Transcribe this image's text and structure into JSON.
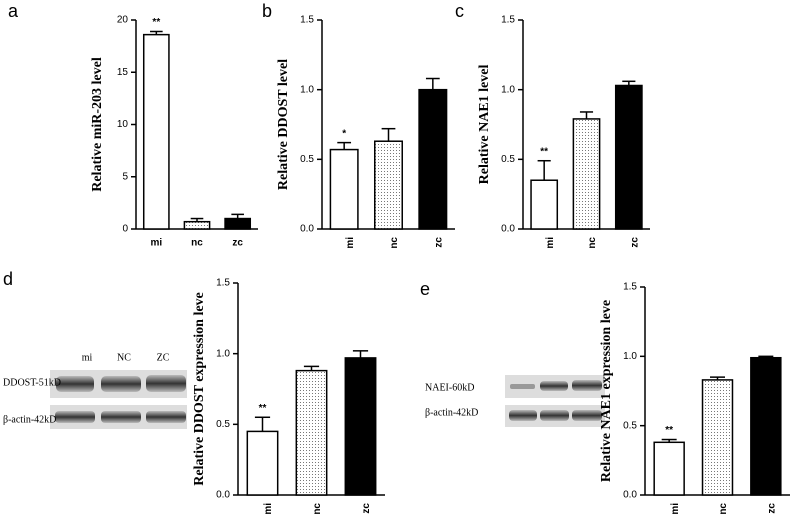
{
  "chart_data": [
    {
      "type": "bar",
      "panel": "a",
      "ylabel": "Relative miR-203 level",
      "categories": [
        "mi",
        "nc",
        "zc"
      ],
      "values": [
        18.6,
        0.7,
        1.0
      ],
      "errors": [
        0.3,
        0.3,
        0.4
      ],
      "significance": [
        "**",
        null,
        null
      ],
      "fills": [
        "white",
        "dotted",
        "black"
      ],
      "ylim": [
        0,
        20
      ],
      "yticks": [
        0,
        5,
        10,
        15,
        20
      ],
      "x_label_rotation": 0
    },
    {
      "type": "bar",
      "panel": "b",
      "ylabel": "Relative DDOST level",
      "categories": [
        "mi",
        "nc",
        "zc"
      ],
      "values": [
        0.57,
        0.63,
        1.0
      ],
      "errors": [
        0.05,
        0.09,
        0.08
      ],
      "significance": [
        "*",
        null,
        null
      ],
      "fills": [
        "white",
        "dotted",
        "black"
      ],
      "ylim": [
        0,
        1.5
      ],
      "yticks": [
        {
          "value": 0,
          "label": "0.0"
        },
        {
          "value": 0.5,
          "label": "0.5"
        },
        {
          "value": 1,
          "label": "1.0"
        },
        {
          "value": 1.5,
          "label": "1.5"
        }
      ],
      "x_label_rotation": 90
    },
    {
      "type": "bar",
      "panel": "c",
      "ylabel": "Relative NAE1 level",
      "categories": [
        "mi",
        "nc",
        "zc"
      ],
      "values": [
        0.35,
        0.79,
        1.03
      ],
      "errors": [
        0.14,
        0.05,
        0.03
      ],
      "significance": [
        "**",
        null,
        null
      ],
      "fills": [
        "white",
        "dotted",
        "black"
      ],
      "ylim": [
        0,
        1.5
      ],
      "yticks": [
        {
          "value": 0,
          "label": "0.0"
        },
        {
          "value": 0.5,
          "label": "0.5"
        },
        {
          "value": 1,
          "label": "1.0"
        },
        {
          "value": 1.5,
          "label": "1.5"
        }
      ],
      "x_label_rotation": 90
    },
    {
      "type": "bar",
      "panel": "d",
      "ylabel": "Relative DDOST expression leve",
      "categories": [
        "mi",
        "nc",
        "zc"
      ],
      "values": [
        0.45,
        0.88,
        0.97
      ],
      "errors": [
        0.1,
        0.03,
        0.05
      ],
      "significance": [
        "**",
        null,
        null
      ],
      "fills": [
        "white",
        "dotted",
        "black"
      ],
      "ylim": [
        0,
        1.5
      ],
      "yticks": [
        {
          "value": 0,
          "label": "0.0"
        },
        {
          "value": 0.5,
          "label": "0.5"
        },
        {
          "value": 1,
          "label": "1.0"
        },
        {
          "value": 1.5,
          "label": "1.5"
        }
      ],
      "x_label_rotation": 90
    },
    {
      "type": "bar",
      "panel": "e",
      "ylabel": "Relative NAE1 expression leve",
      "categories": [
        "mi",
        "nc",
        "zc"
      ],
      "values": [
        0.38,
        0.83,
        0.99
      ],
      "errors": [
        0.02,
        0.02,
        0.01
      ],
      "significance": [
        "**",
        null,
        null
      ],
      "fills": [
        "white",
        "dotted",
        "black"
      ],
      "ylim": [
        0,
        1.5
      ],
      "yticks": [
        {
          "value": 0,
          "label": "0.0"
        },
        {
          "value": 0.5,
          "label": "0.5"
        },
        {
          "value": 1,
          "label": "1.0"
        },
        {
          "value": 1.5,
          "label": "1.5"
        }
      ],
      "x_label_rotation": 90
    }
  ],
  "blots": [
    {
      "lanes": [
        "mi",
        "NC",
        "ZC"
      ],
      "rows": [
        "DDOST-51kD",
        "β-actin-42kD"
      ]
    },
    {
      "rows": [
        "NAEI-60kD",
        "β-actin-42kD"
      ]
    }
  ]
}
